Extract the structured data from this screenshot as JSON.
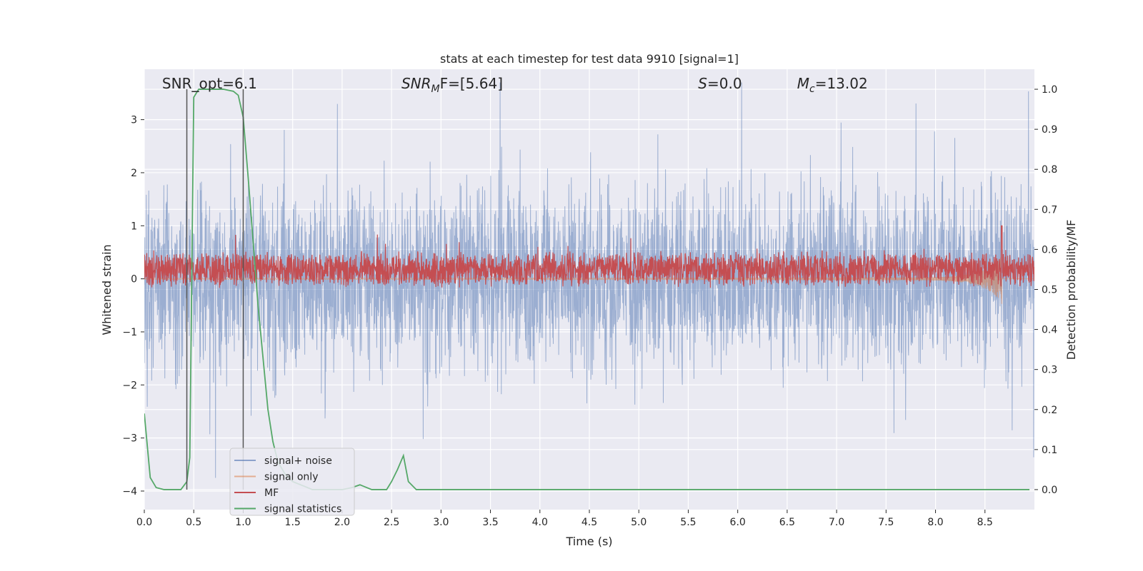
{
  "chart_data": {
    "type": "line",
    "title": "stats at each timestep for test data 9910 [signal=1]",
    "xlabel": "Time (s)",
    "ylabel": "Whitened strain",
    "ylabel_right": "Detection probability/MF",
    "xlim": [
      0.0,
      9.0
    ],
    "ylim": [
      -4.35,
      3.95
    ],
    "ylim_right": [
      -0.05,
      1.05
    ],
    "x_ticks": [
      0.0,
      0.5,
      1.0,
      1.5,
      2.0,
      2.5,
      3.0,
      3.5,
      4.0,
      4.5,
      5.0,
      5.5,
      6.0,
      6.5,
      7.0,
      7.5,
      8.0,
      8.5
    ],
    "x_tick_labels": [
      "0.0",
      "0.5",
      "1.0",
      "1.5",
      "2.0",
      "2.5",
      "3.0",
      "3.5",
      "4.0",
      "4.5",
      "5.0",
      "5.5",
      "6.0",
      "6.5",
      "7.0",
      "7.5",
      "8.0",
      "8.5"
    ],
    "y_ticks": [
      3,
      2,
      1,
      0,
      -1,
      -2,
      -3,
      -4
    ],
    "y_tick_labels": [
      "3",
      "2",
      "1",
      "0",
      "−1",
      "−2",
      "−3",
      "−4"
    ],
    "y_right_ticks": [
      1.0,
      0.9,
      0.8,
      0.7,
      0.6,
      0.5,
      0.4,
      0.3,
      0.2,
      0.1,
      0.0
    ],
    "y_right_tick_labels": [
      "1.0",
      "0.9",
      "0.8",
      "0.7",
      "0.6",
      "0.5",
      "0.4",
      "0.3",
      "0.2",
      "0.1",
      "0.0"
    ],
    "grid": true,
    "legend_placement": "lower-left",
    "vertical_lines_x": [
      0.43,
      1.0
    ],
    "annotations": [
      {
        "id": "snr-opt",
        "text": "SNR_opt=6.1",
        "x": 0.18
      },
      {
        "id": "snr-mf",
        "text": "SNR",
        "sub": "M",
        "rest": "F=[5.64]",
        "italic": true,
        "x": 2.6
      },
      {
        "id": "s-value",
        "text": "S",
        "rest": "=0.0",
        "italic": true,
        "x": 5.6
      },
      {
        "id": "mc-value",
        "text": "M",
        "sub": "c",
        "rest": "=13.02",
        "italic": true,
        "x": 6.6
      }
    ],
    "series": [
      {
        "id": "signal-noise",
        "name": "signal+ noise",
        "color": "#4c72b0",
        "axis": "left",
        "kind": "noise",
        "amplitude": 3.7
      },
      {
        "id": "signal-only",
        "name": "signal only",
        "color": "#dd8452",
        "axis": "left",
        "kind": "chirp",
        "tc": 8.67,
        "peak_max": 0.9,
        "peak_min": -1.15
      },
      {
        "id": "mf",
        "name": "MF",
        "color": "#c44e52",
        "axis": "left",
        "kind": "mf",
        "base": 0.18,
        "band": 0.6,
        "spike_x": 8.67,
        "spike_y": 1.0
      },
      {
        "id": "signal-statistics",
        "name": "signal statistics",
        "color": "#55a868",
        "axis": "right",
        "kind": "points",
        "x": [
          0.0,
          0.06,
          0.12,
          0.2,
          0.3,
          0.37,
          0.43,
          0.46,
          0.5,
          0.55,
          0.6,
          0.7,
          0.8,
          0.9,
          0.95,
          1.0,
          1.05,
          1.1,
          1.15,
          1.2,
          1.25,
          1.3,
          1.35,
          1.42,
          1.5,
          1.6,
          1.7,
          1.8,
          1.9,
          2.0,
          2.1,
          2.18,
          2.25,
          2.3,
          2.38,
          2.45,
          2.5,
          2.56,
          2.62,
          2.67,
          2.75,
          2.85,
          3.0,
          4.0,
          5.0,
          6.0,
          7.0,
          8.0,
          8.95
        ],
        "y": [
          0.19,
          0.03,
          0.005,
          0.0,
          0.0,
          0.0,
          0.02,
          0.08,
          0.98,
          1.0,
          1.0,
          1.0,
          1.0,
          0.995,
          0.985,
          0.93,
          0.78,
          0.62,
          0.46,
          0.33,
          0.2,
          0.12,
          0.07,
          0.04,
          0.02,
          0.01,
          0.0,
          0.0,
          0.0,
          0.0,
          0.005,
          0.012,
          0.005,
          0.0,
          0.0,
          0.0,
          0.02,
          0.05,
          0.085,
          0.02,
          0.0,
          0.0,
          0.0,
          0.0,
          0.0,
          0.0,
          0.0,
          0.0,
          0.0
        ]
      }
    ]
  }
}
